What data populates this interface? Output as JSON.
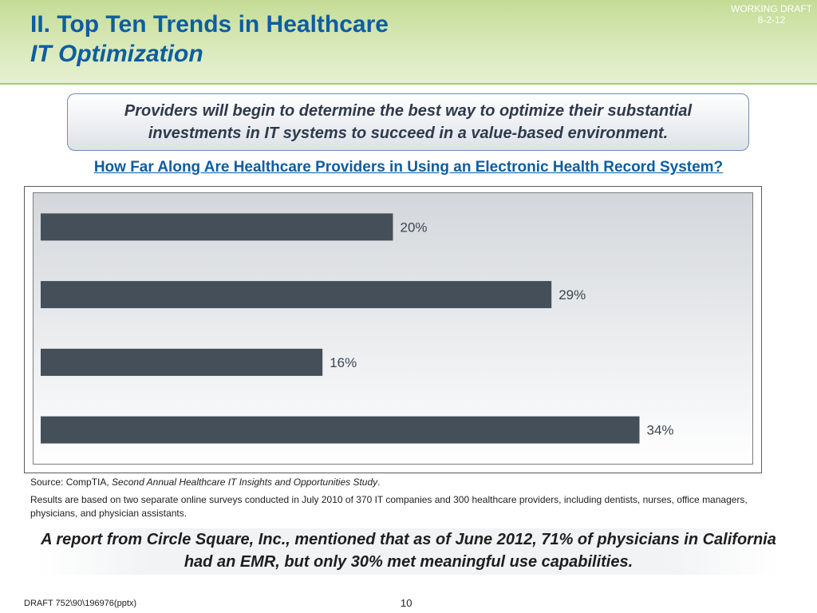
{
  "header": {
    "title_line1": "II.  Top Ten Trends in Healthcare",
    "title_line2": "IT Optimization",
    "working_draft": "WORKING DRAFT",
    "draft_date": "8-2-12",
    "background_color": "#cfe3a8",
    "title_color": "#0e5da0"
  },
  "callout": {
    "text": "Providers will begin to determine the best way to optimize their substantial investments in IT systems to succeed in a value-based environment."
  },
  "question": "How Far Along Are Healthcare Providers in Using an Electronic Health Record System?",
  "chart_data": {
    "type": "bar",
    "orientation": "horizontal",
    "categories": [
      "",
      "",
      "",
      ""
    ],
    "values": [
      20,
      29,
      16,
      34
    ],
    "data_labels": [
      "20%",
      "29%",
      "16%",
      "34%"
    ],
    "xlim": [
      0,
      40
    ],
    "bar_color": "#454f5a",
    "grid": false
  },
  "source": {
    "prefix": "Source:  CompTIA, ",
    "title": "Second Annual Healthcare IT Insights and Opportunities Study",
    "suffix": "."
  },
  "results_note": "Results are based on two separate online surveys conducted in July 2010 of 370 IT companies and 300 healthcare providers, including dentists, nurses, office managers, physicians, and physician assistants.",
  "report": "A report from Circle Square, Inc., mentioned that as of June 2012, 71% of physicians in California had an EMR, but only 30% met meaningful use capabilities.",
  "footer": {
    "draft_label": "DRAFT 752\\90\\196976(pptx)",
    "page_number": "10"
  }
}
